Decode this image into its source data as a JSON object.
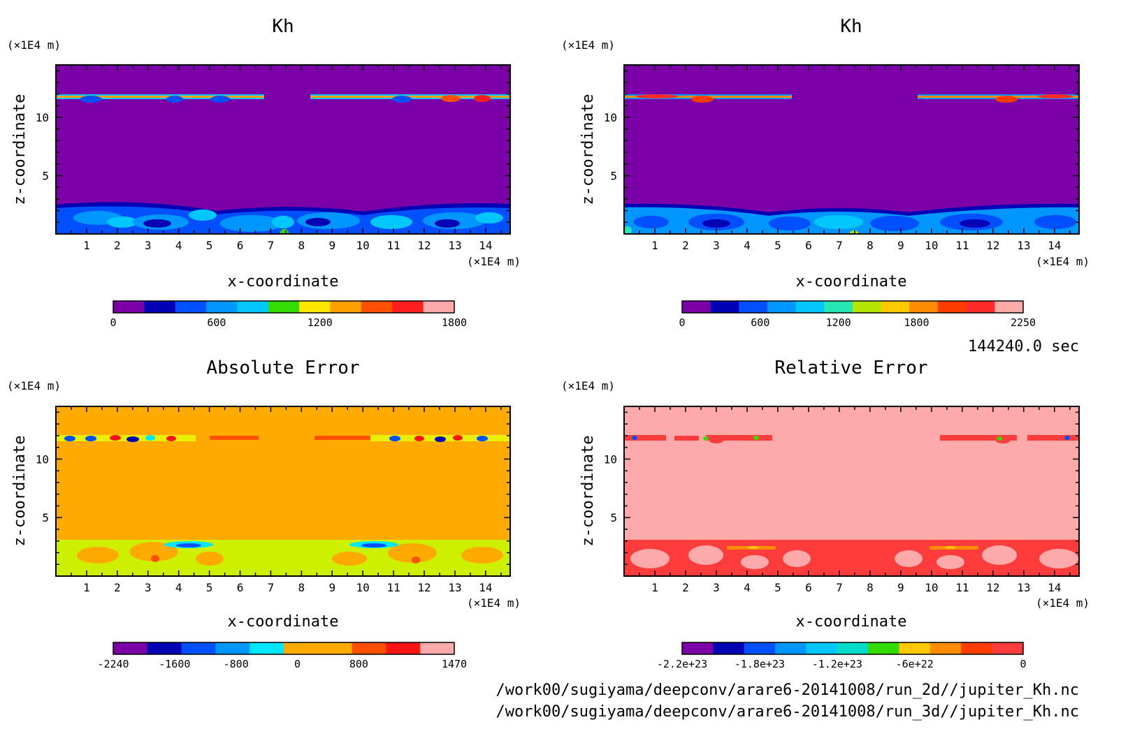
{
  "figure": {
    "time_label": "144240.0 sec",
    "file_lines": [
      "/work00/sugiyama/deepconv/arare6-20141008/run_2d//jupiter_Kh.nc",
      "/work00/sugiyama/deepconv/arare6-20141008/run_3d//jupiter_Kh.nc"
    ]
  },
  "chart_data": [
    {
      "type": "heatmap",
      "title": "Kh",
      "xlabel": "x-coordinate",
      "ylabel": "z-coordinate",
      "x_unit": "(×1E4 m)",
      "y_unit": "(×1E4 m)",
      "xlim": [
        0,
        14.8
      ],
      "ylim": [
        0,
        14.5
      ],
      "xticks": [
        "1",
        "2",
        "3",
        "4",
        "5",
        "6",
        "7",
        "8",
        "9",
        "10",
        "11",
        "12",
        "13",
        "14"
      ],
      "yticks": [
        "5",
        "10"
      ],
      "background_level_color": "#7b00a8",
      "colorbar": {
        "colors": [
          "#7b00a8",
          "#0000b4",
          "#0050ff",
          "#0096ff",
          "#00c8ff",
          "#32dc00",
          "#ffe600",
          "#ffa000",
          "#ff5000",
          "#ff1e1e",
          "#ffaaaa"
        ],
        "tick_labels": [
          "0",
          "600",
          "1200",
          "1800"
        ]
      }
    },
    {
      "type": "heatmap",
      "title": "Kh",
      "xlabel": "x-coordinate",
      "ylabel": "z-coordinate",
      "x_unit": "(×1E4 m)",
      "y_unit": "(×1E4 m)",
      "xlim": [
        0,
        14.8
      ],
      "ylim": [
        0,
        14.5
      ],
      "xticks": [
        "1",
        "2",
        "3",
        "4",
        "5",
        "6",
        "7",
        "8",
        "9",
        "10",
        "11",
        "12",
        "13",
        "14"
      ],
      "yticks": [
        "5",
        "10"
      ],
      "background_level_color": "#7b00a8",
      "colorbar": {
        "colors": [
          "#7b00a8",
          "#0000b4",
          "#0050ff",
          "#0096ff",
          "#00c8ff",
          "#28e6b4",
          "#b4e600",
          "#ffc800",
          "#ff8c00",
          "#ff3c00",
          "#ff2a2a",
          "#ffaaaa"
        ],
        "tick_labels": [
          "0",
          "600",
          "1200",
          "1800",
          "2250"
        ]
      }
    },
    {
      "type": "heatmap",
      "title": "Absolute Error",
      "xlabel": "x-coordinate",
      "ylabel": "z-coordinate",
      "x_unit": "(×1E4 m)",
      "y_unit": "(×1E4 m)",
      "xlim": [
        0,
        14.8
      ],
      "ylim": [
        0,
        14.5
      ],
      "xticks": [
        "1",
        "2",
        "3",
        "4",
        "5",
        "6",
        "7",
        "8",
        "9",
        "10",
        "11",
        "12",
        "13",
        "14"
      ],
      "yticks": [
        "5",
        "10"
      ],
      "background_level_color": "#ffaa00",
      "colorbar": {
        "colors": [
          "#7b00a8",
          "#0000b4",
          "#0050ff",
          "#0096ff",
          "#00e6ff",
          "#ffaa00",
          "#ffaa00",
          "#ff5000",
          "#ff1414",
          "#ffaaaa"
        ],
        "tick_labels": [
          "-2240",
          "-1600",
          "-800",
          "0",
          "800",
          "1470"
        ]
      }
    },
    {
      "type": "heatmap",
      "title": "Relative Error",
      "xlabel": "x-coordinate",
      "ylabel": "z-coordinate",
      "x_unit": "(×1E4 m)",
      "y_unit": "(×1E4 m)",
      "xlim": [
        0,
        14.8
      ],
      "ylim": [
        0,
        14.5
      ],
      "xticks": [
        "1",
        "2",
        "3",
        "4",
        "5",
        "6",
        "7",
        "8",
        "9",
        "10",
        "11",
        "12",
        "13",
        "14"
      ],
      "yticks": [
        "5",
        "10"
      ],
      "background_level_color": "#ffaaaa",
      "colorbar": {
        "colors": [
          "#7b00a8",
          "#0000b4",
          "#0050ff",
          "#0096ff",
          "#00c8ff",
          "#00dcc8",
          "#32dc00",
          "#ffc800",
          "#ff8c00",
          "#ff3c00",
          "#ff3c3c"
        ],
        "tick_labels": [
          "-2.2e+23",
          "-1.8e+23",
          "-1.2e+23",
          "-6e+22",
          "0"
        ]
      }
    }
  ]
}
